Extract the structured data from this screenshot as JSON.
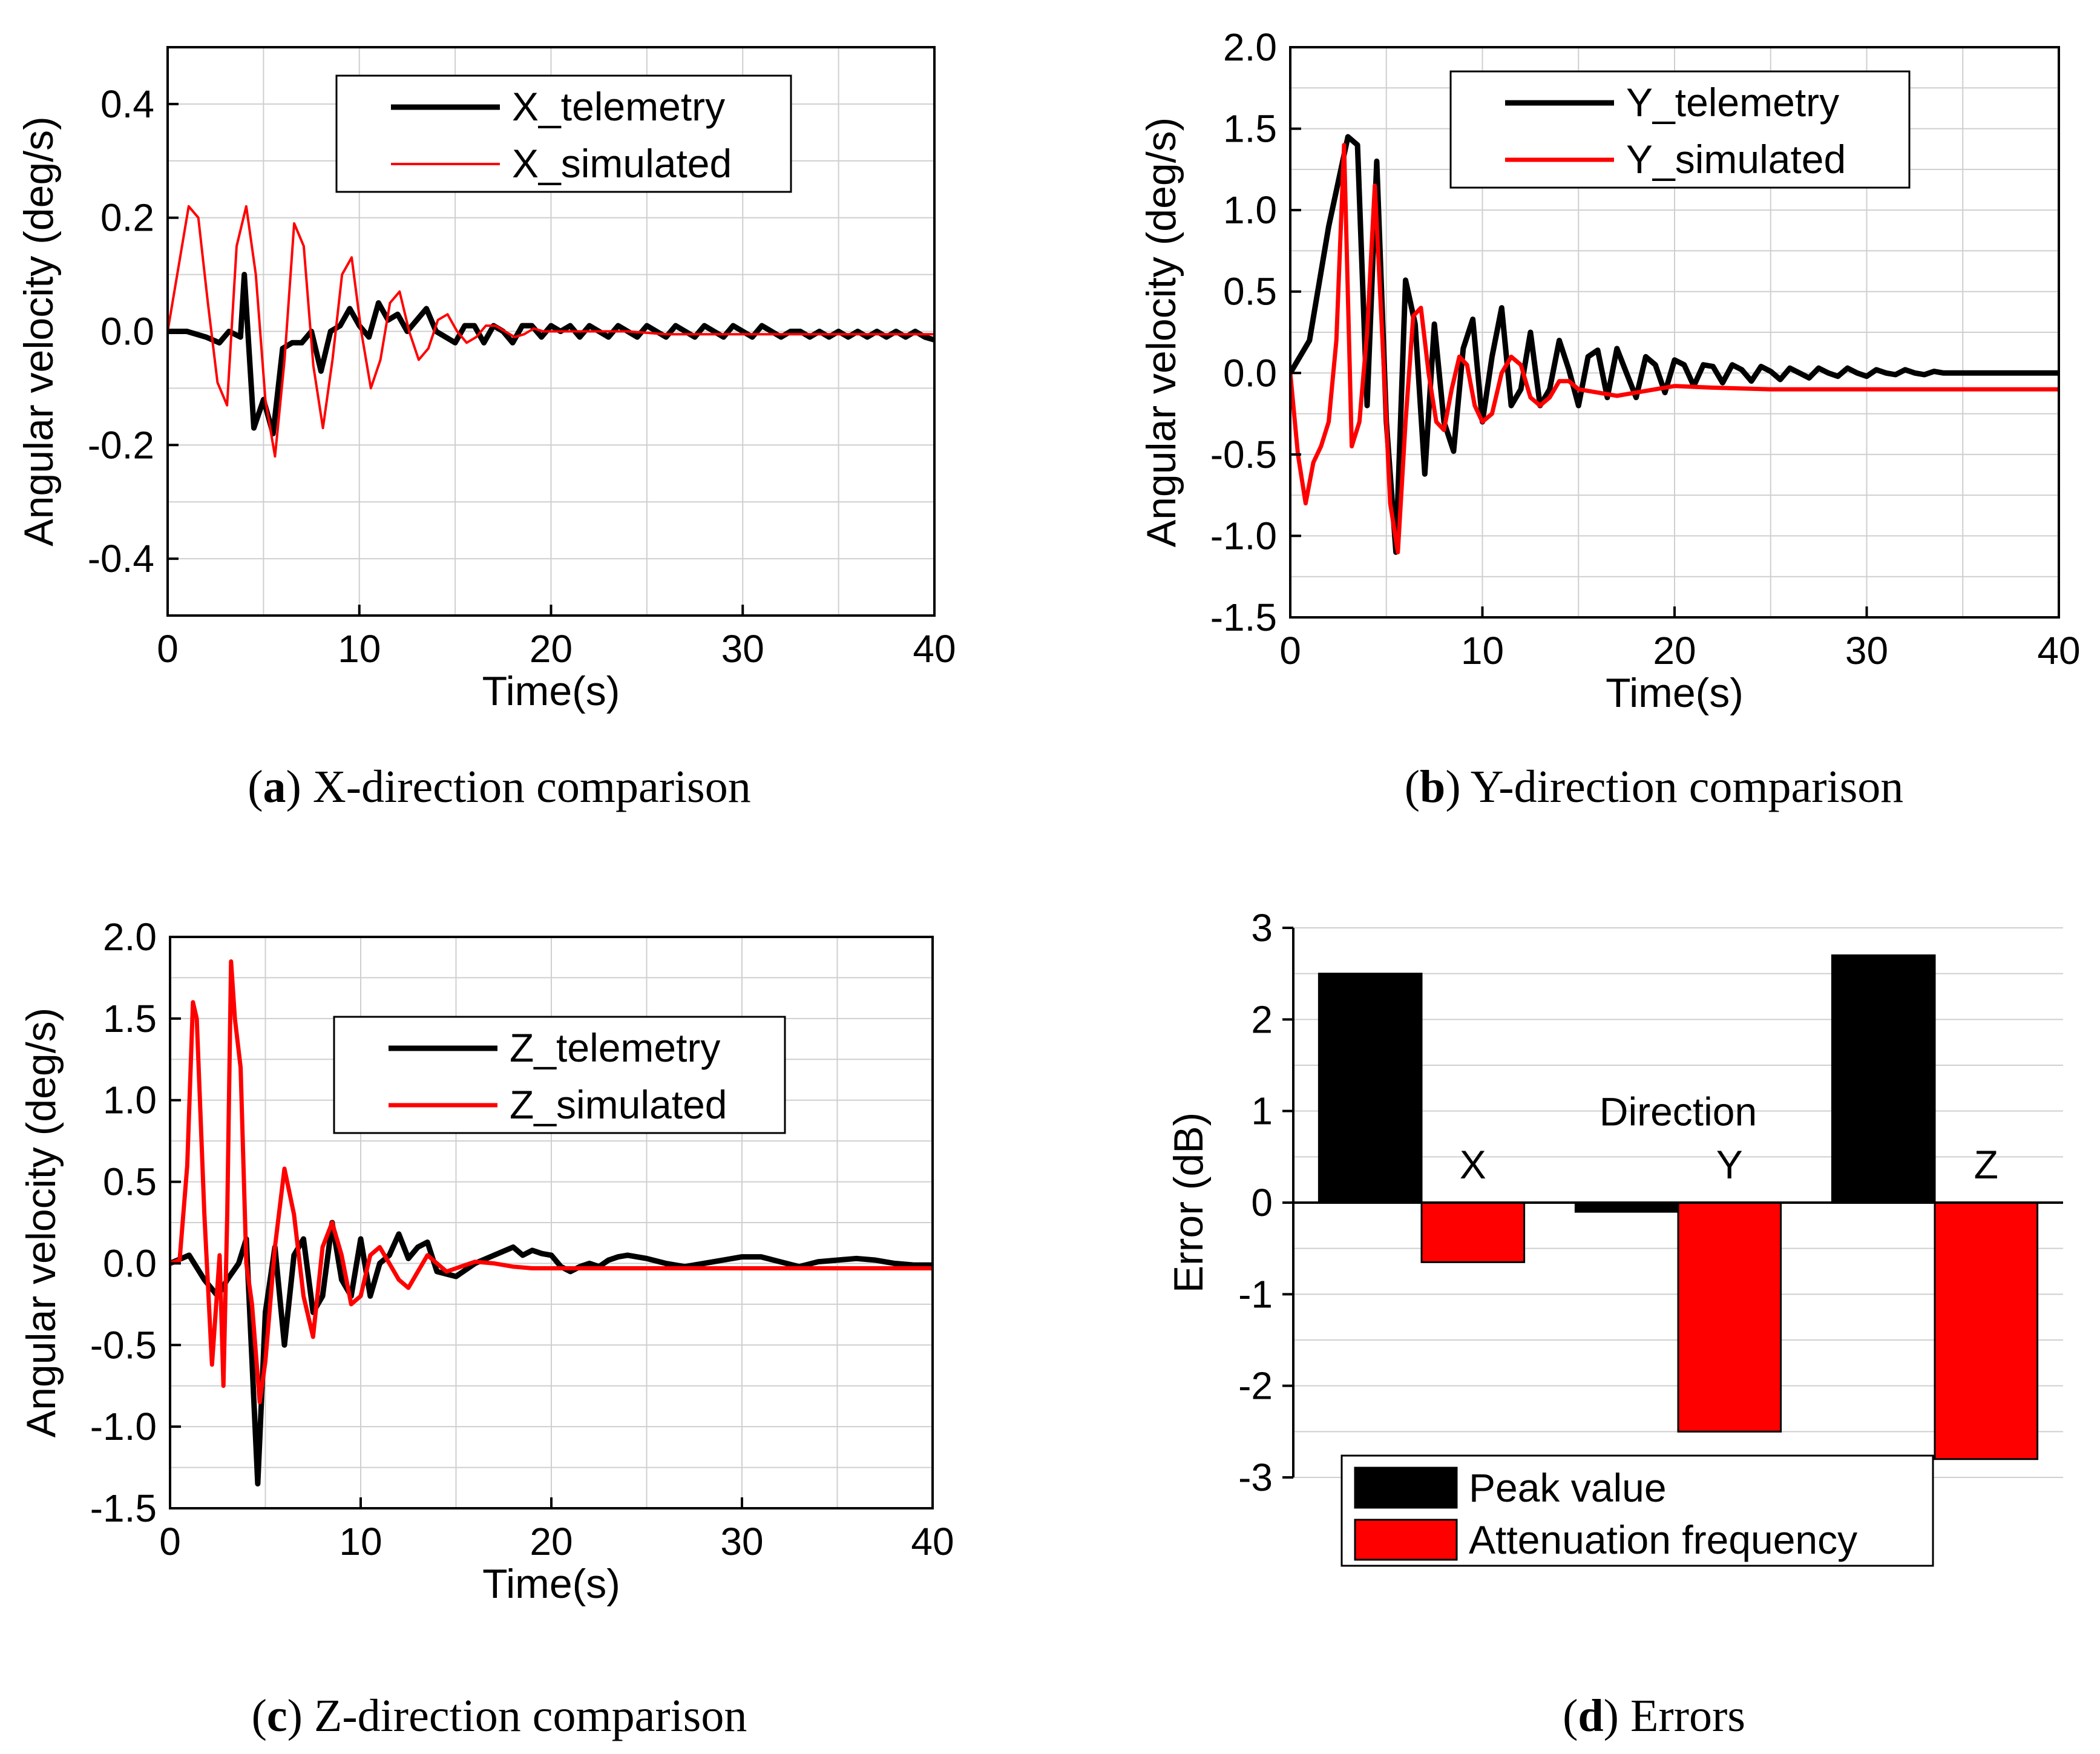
{
  "colors": {
    "telemetry": "#000000",
    "simulated": "#ff0000",
    "grid": "#cfcfcf"
  },
  "chart_data": [
    {
      "id": "a",
      "type": "line",
      "caption": {
        "letter": "a",
        "rest": " X-direction comparison"
      },
      "xlabel": "Time(s)",
      "ylabel": "Angular velocity (deg/s)",
      "xlim": [
        0,
        40
      ],
      "ylim": [
        -0.5,
        0.5
      ],
      "xticks": [
        0,
        10,
        20,
        30,
        40
      ],
      "xtick_labels": [
        "0",
        "10",
        "20",
        "30",
        "40"
      ],
      "yticks": [
        -0.4,
        -0.2,
        0.0,
        0.2,
        0.4
      ],
      "ytick_labels": [
        "-0.4",
        "-0.2",
        "0.0",
        "0.2",
        "0.4"
      ],
      "legend": [
        "X_telemetry",
        "X_simulated"
      ],
      "series": [
        {
          "name": "X_telemetry",
          "color": "#000000",
          "width": 9,
          "x": [
            0,
            1,
            2,
            2.7,
            3.2,
            3.8,
            4,
            4.5,
            5,
            5.5,
            6,
            6.5,
            7,
            7.5,
            8,
            8.5,
            9,
            9.5,
            10,
            10.5,
            11,
            11.5,
            12,
            12.5,
            13,
            13.5,
            14,
            14.5,
            15,
            15.5,
            16,
            16.5,
            17,
            17.5,
            18,
            18.5,
            19,
            19.5,
            20,
            20.5,
            21,
            21.5,
            22,
            22.5,
            23,
            23.5,
            24,
            24.5,
            25,
            25.5,
            26,
            26.5,
            27,
            27.5,
            28,
            28.5,
            29,
            29.5,
            30,
            30.5,
            31,
            31.5,
            32,
            32.5,
            33,
            33.5,
            34,
            34.5,
            35,
            35.5,
            36,
            36.5,
            37,
            37.5,
            38,
            38.5,
            39,
            39.5,
            40
          ],
          "values": [
            0,
            0,
            -0.01,
            -0.02,
            0,
            -0.01,
            0.1,
            -0.17,
            -0.12,
            -0.18,
            -0.03,
            -0.02,
            -0.02,
            0,
            -0.07,
            0,
            0.01,
            0.04,
            0.01,
            -0.01,
            0.05,
            0.02,
            0.03,
            0,
            0.02,
            0.04,
            0,
            -0.01,
            -0.02,
            0.01,
            0.01,
            -0.02,
            0.01,
            0,
            -0.02,
            0.01,
            0.01,
            -0.01,
            0.01,
            0,
            0.01,
            -0.01,
            0.01,
            0,
            -0.01,
            0.01,
            0,
            -0.01,
            0.01,
            0,
            -0.01,
            0.01,
            0,
            -0.01,
            0.01,
            0,
            -0.01,
            0.01,
            0,
            -0.01,
            0.01,
            0,
            -0.01,
            0,
            0,
            -0.01,
            0,
            -0.01,
            0,
            -0.01,
            0,
            -0.01,
            0,
            -0.01,
            0,
            -0.01,
            0,
            -0.01,
            -0.015
          ]
        },
        {
          "name": "X_simulated",
          "color": "#ff0000",
          "width": 4,
          "x": [
            0,
            0.6,
            1.1,
            1.6,
            2.1,
            2.6,
            3.1,
            3.6,
            4.1,
            4.6,
            5.1,
            5.6,
            6.1,
            6.6,
            7.1,
            7.6,
            8.1,
            8.6,
            9.1,
            9.6,
            10.1,
            10.6,
            11.1,
            11.6,
            12.1,
            12.6,
            13.1,
            13.6,
            14.1,
            14.6,
            15.1,
            15.6,
            16.1,
            16.6,
            17.1,
            17.6,
            18.1,
            18.6,
            19.1,
            19.6,
            20.5,
            22,
            24,
            26,
            28,
            30,
            32,
            34,
            36,
            38,
            40
          ],
          "values": [
            0,
            0.12,
            0.22,
            0.2,
            0.05,
            -0.09,
            -0.13,
            0.15,
            0.22,
            0.1,
            -0.12,
            -0.22,
            -0.05,
            0.19,
            0.15,
            -0.06,
            -0.17,
            -0.05,
            0.1,
            0.13,
            0,
            -0.1,
            -0.05,
            0.05,
            0.07,
            0,
            -0.05,
            -0.03,
            0.02,
            0.03,
            0,
            -0.02,
            -0.01,
            0.01,
            0.01,
            0,
            -0.01,
            -0.005,
            0.005,
            0,
            0,
            0,
            0,
            -0.005,
            -0.005,
            -0.005,
            -0.005,
            -0.005,
            -0.005,
            -0.005,
            -0.005
          ]
        }
      ]
    },
    {
      "id": "b",
      "type": "line",
      "caption": {
        "letter": "b",
        "rest": " Y-direction comparison"
      },
      "xlabel": "Time(s)",
      "ylabel": "Angular velocity (deg/s)",
      "xlim": [
        0,
        40
      ],
      "ylim": [
        -1.5,
        2.0
      ],
      "xticks": [
        0,
        10,
        20,
        30,
        40
      ],
      "xtick_labels": [
        "0",
        "10",
        "20",
        "30",
        "40"
      ],
      "yticks": [
        -1.5,
        -1.0,
        -0.5,
        0.0,
        0.5,
        1.0,
        1.5,
        2.0
      ],
      "ytick_labels": [
        "-1.5",
        "-1.0",
        "-0.5",
        "0.0",
        "0.5",
        "1.0",
        "1.5",
        "2.0"
      ],
      "legend": [
        "Y_telemetry",
        "Y_simulated"
      ],
      "series": [
        {
          "name": "Y_telemetry",
          "color": "#000000",
          "width": 9,
          "x": [
            0,
            1,
            2,
            3,
            3.5,
            4,
            4.5,
            5,
            5.5,
            6,
            6.5,
            7,
            7.5,
            8,
            8.5,
            9,
            9.5,
            10,
            10.5,
            11,
            11.5,
            12,
            12.5,
            13,
            13.5,
            14,
            14.5,
            15,
            15.5,
            16,
            16.5,
            17,
            17.5,
            18,
            18.5,
            19,
            19.5,
            20,
            20.5,
            21,
            21.5,
            22,
            22.5,
            23,
            23.5,
            24,
            24.5,
            25,
            25.5,
            26,
            26.5,
            27,
            27.5,
            28,
            28.5,
            29,
            29.5,
            30,
            30.5,
            31,
            31.5,
            32,
            32.5,
            33,
            33.5,
            34,
            34.5,
            35,
            35.5,
            36,
            38,
            40
          ],
          "values": [
            0,
            0.2,
            0.9,
            1.45,
            1.4,
            -0.2,
            1.3,
            -0.3,
            -1.1,
            0.57,
            0.3,
            -0.62,
            0.3,
            -0.3,
            -0.48,
            0.15,
            0.33,
            -0.3,
            0.1,
            0.4,
            -0.2,
            -0.1,
            0.25,
            -0.2,
            -0.1,
            0.2,
            0.02,
            -0.2,
            0.1,
            0.14,
            -0.15,
            0.15,
            0,
            -0.15,
            0.1,
            0.05,
            -0.12,
            0.08,
            0.05,
            -0.08,
            0.05,
            0.04,
            -0.06,
            0.05,
            0.02,
            -0.05,
            0.04,
            0.01,
            -0.04,
            0.03,
            0,
            -0.03,
            0.03,
            0,
            -0.02,
            0.03,
            0,
            -0.02,
            0.02,
            0,
            -0.01,
            0.02,
            0,
            -0.01,
            0.01,
            0,
            0,
            0,
            0,
            0,
            0,
            0
          ]
        },
        {
          "name": "Y_simulated",
          "color": "#ff0000",
          "width": 7,
          "x": [
            0,
            0.4,
            0.8,
            1.2,
            1.6,
            2,
            2.4,
            2.8,
            3.2,
            3.6,
            4,
            4.4,
            4.8,
            5.2,
            5.6,
            6,
            6.4,
            6.8,
            7.2,
            7.6,
            8,
            8.4,
            8.8,
            9.2,
            9.6,
            10,
            10.5,
            11,
            11.5,
            12,
            12.5,
            13,
            13.5,
            14,
            14.5,
            15,
            16,
            17,
            18,
            19,
            20,
            22,
            25,
            30,
            35,
            40
          ],
          "values": [
            0,
            -0.5,
            -0.8,
            -0.55,
            -0.45,
            -0.3,
            0.2,
            1.4,
            -0.45,
            -0.3,
            0.25,
            1.15,
            0.2,
            -0.8,
            -1.1,
            -0.3,
            0.35,
            0.4,
            0,
            -0.3,
            -0.35,
            -0.1,
            0.1,
            0.05,
            -0.2,
            -0.3,
            -0.25,
            0,
            0.1,
            0.05,
            -0.15,
            -0.2,
            -0.15,
            -0.05,
            -0.05,
            -0.1,
            -0.12,
            -0.14,
            -0.12,
            -0.1,
            -0.08,
            -0.09,
            -0.1,
            -0.1,
            -0.1,
            -0.1
          ]
        }
      ]
    },
    {
      "id": "c",
      "type": "line",
      "caption": {
        "letter": "c",
        "rest": " Z-direction comparison"
      },
      "xlabel": "Time(s)",
      "ylabel": "Angular velocity (deg/s)",
      "xlim": [
        0,
        40
      ],
      "ylim": [
        -1.5,
        2.0
      ],
      "xticks": [
        0,
        10,
        20,
        30,
        40
      ],
      "xtick_labels": [
        "0",
        "10",
        "20",
        "30",
        "40"
      ],
      "yticks": [
        -1.5,
        -1.0,
        -0.5,
        0.0,
        0.5,
        1.0,
        1.5,
        2.0
      ],
      "ytick_labels": [
        "-1.5",
        "-1.0",
        "-0.5",
        "0.0",
        "0.5",
        "1.0",
        "1.5",
        "2.0"
      ],
      "legend": [
        "Z_telemetry",
        "Z_simulated"
      ],
      "series": [
        {
          "name": "Z_telemetry",
          "color": "#000000",
          "width": 9,
          "x": [
            0,
            1,
            1.8,
            2.5,
            3,
            3.6,
            4,
            4.6,
            5,
            5.5,
            6,
            6.5,
            7,
            7.5,
            8,
            8.5,
            9,
            9.5,
            10,
            10.5,
            11,
            11.5,
            12,
            12.5,
            13,
            13.5,
            14,
            15,
            16,
            17,
            18,
            18.5,
            19,
            19.5,
            20,
            20.5,
            21,
            21.5,
            22,
            22.5,
            23,
            23.5,
            24,
            25,
            26,
            27,
            28,
            29,
            30,
            31,
            32,
            33,
            34,
            35,
            36,
            37,
            38,
            39,
            40
          ],
          "values": [
            0,
            0.05,
            -0.1,
            -0.2,
            -0.1,
            0,
            0.15,
            -1.35,
            -0.3,
            0.1,
            -0.5,
            0.05,
            0.15,
            -0.3,
            -0.2,
            0.25,
            -0.1,
            -0.2,
            0.15,
            -0.2,
            0,
            0.05,
            0.18,
            0.03,
            0.1,
            0.13,
            -0.05,
            -0.08,
            0,
            0.05,
            0.1,
            0.05,
            0.08,
            0.06,
            0.05,
            -0.02,
            -0.05,
            -0.02,
            0,
            -0.02,
            0.02,
            0.04,
            0.05,
            0.03,
            0,
            -0.02,
            0,
            0.02,
            0.04,
            0.04,
            0.01,
            -0.02,
            0.01,
            0.02,
            0.03,
            0.02,
            0,
            -0.01,
            -0.01
          ]
        },
        {
          "name": "Z_simulated",
          "color": "#ff0000",
          "width": 7,
          "x": [
            0,
            0.5,
            0.9,
            1.2,
            1.4,
            1.8,
            2.2,
            2.6,
            2.8,
            3.0,
            3.2,
            3.4,
            3.7,
            4.0,
            4.3,
            4.7,
            5.0,
            5.5,
            6,
            6.5,
            7,
            7.5,
            8,
            8.5,
            9,
            9.5,
            10,
            10.5,
            11,
            11.5,
            12,
            12.5,
            13,
            13.5,
            14,
            14.5,
            15,
            16,
            17,
            18,
            19,
            20,
            22,
            25,
            30,
            35,
            40
          ],
          "values": [
            0,
            0.02,
            0.6,
            1.6,
            1.5,
            0.3,
            -0.62,
            0.05,
            -0.75,
            0.3,
            1.85,
            1.5,
            1.2,
            0,
            -0.25,
            -0.85,
            -0.6,
            0.1,
            0.58,
            0.3,
            -0.2,
            -0.45,
            0.1,
            0.25,
            0.05,
            -0.25,
            -0.2,
            0.05,
            0.1,
            0,
            -0.1,
            -0.15,
            -0.05,
            0.05,
            0,
            -0.05,
            -0.03,
            0.01,
            0,
            -0.02,
            -0.03,
            -0.03,
            -0.03,
            -0.03,
            -0.03,
            -0.03,
            -0.03
          ]
        }
      ]
    },
    {
      "id": "d",
      "type": "bar",
      "caption": {
        "letter": "d",
        "rest": " Errors"
      },
      "xlabel": "Direction",
      "ylabel": "Error (dB)",
      "ylim": [
        -3,
        3
      ],
      "yticks": [
        -3,
        -2,
        -1,
        0,
        1,
        2,
        3
      ],
      "ytick_labels": [
        "-3",
        "-2",
        "-1",
        "0",
        "1",
        "2",
        "3"
      ],
      "categories": [
        "X",
        "Y",
        "Z"
      ],
      "legend": [
        "Peak value",
        "Attenuation frequency"
      ],
      "series": [
        {
          "name": "Peak value",
          "color": "#000000",
          "values": [
            2.5,
            -0.1,
            2.7
          ]
        },
        {
          "name": "Attenuation frequency",
          "color": "#ff0000",
          "values": [
            -0.65,
            -2.5,
            -2.8
          ]
        }
      ]
    }
  ]
}
